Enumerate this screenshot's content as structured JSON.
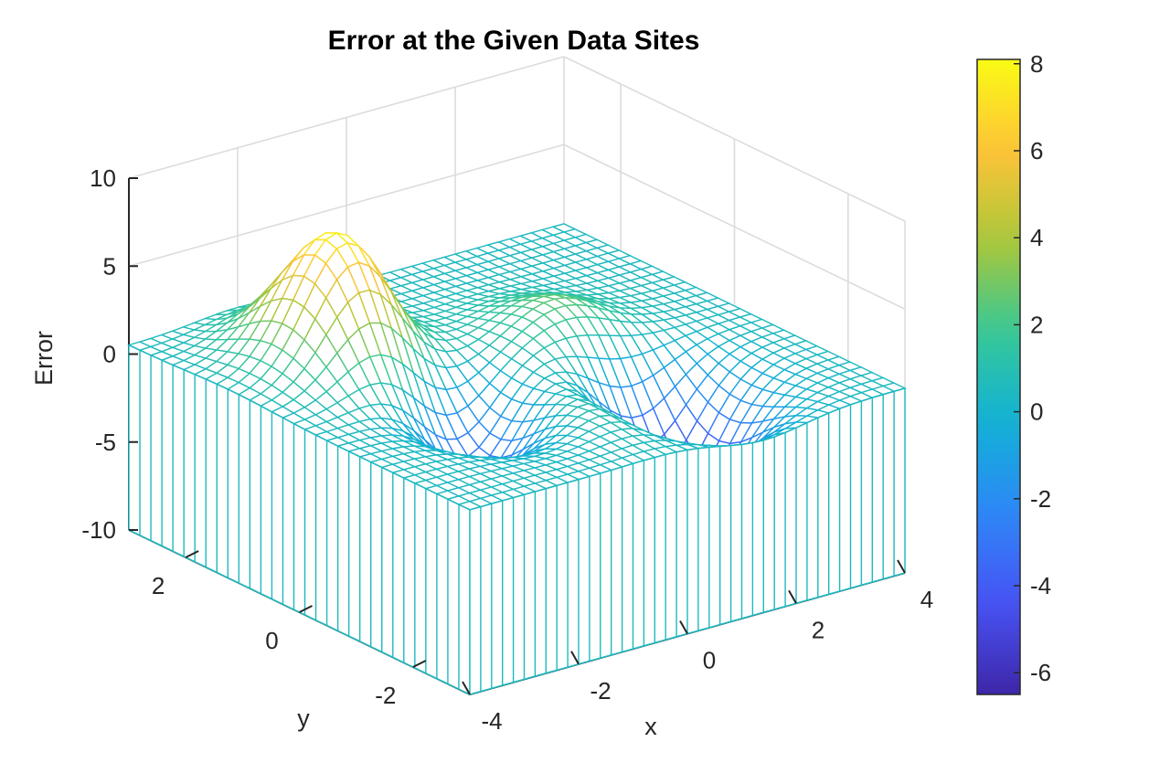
{
  "chart_data": {
    "type": "surface-mesh",
    "title": "Error at the Given Data Sites",
    "xlabel": "x",
    "ylabel": "y",
    "zlabel": "Error",
    "xlim": [
      -4,
      4
    ],
    "ylim": [
      -3,
      3
    ],
    "zlim": [
      -10,
      10
    ],
    "xticks": [
      -4,
      -2,
      0,
      2,
      4
    ],
    "yticks": [
      -2,
      0,
      2
    ],
    "zticks": [
      -10,
      -5,
      0,
      5,
      10
    ],
    "grid": true,
    "colormap": "parula",
    "colorbar": {
      "location": "right",
      "limits": [
        -6.5,
        8.1
      ],
      "ticks": [
        -6,
        -4,
        -2,
        0,
        2,
        4,
        6,
        8
      ]
    },
    "surface_features": [
      {
        "kind": "peak",
        "x": -2.0,
        "y": 1.2,
        "z": 8.1
      },
      {
        "kind": "valley",
        "x": -1.3,
        "y": -0.5,
        "z": -4.5
      },
      {
        "kind": "peak",
        "x": -0.3,
        "y": -1.1,
        "z": 2.5
      },
      {
        "kind": "peak",
        "x": 1.2,
        "y": 0.2,
        "z": 3.0
      },
      {
        "kind": "valley",
        "x": 1.4,
        "y": -1.4,
        "z": -6.5
      }
    ],
    "baseline_z": 0.5,
    "skirt_to_z": -10,
    "grid_resolution": 41
  }
}
